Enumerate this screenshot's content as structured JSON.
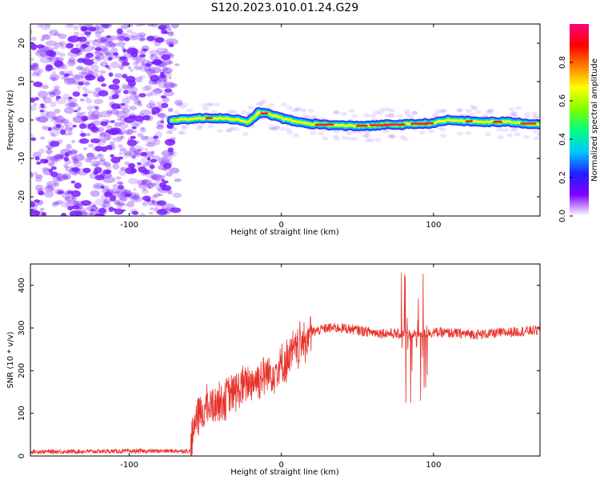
{
  "title": "S120.2023.010.01.24.G29",
  "colors": {
    "snr_line": "#e8302a",
    "scatter_fill": "#7a1fff",
    "colorbar": [
      "#ffffff",
      "#8000ff",
      "#2020ff",
      "#00c8ff",
      "#00ff80",
      "#80ff00",
      "#ffff00",
      "#ff8000",
      "#ff0000",
      "#ff0080"
    ]
  },
  "chart_data": [
    {
      "type": "heatmap",
      "xlabel": "Height of straight line (km)",
      "ylabel": "Frequency (Hz)",
      "xlim": [
        -165,
        170
      ],
      "ylim": [
        -25,
        25
      ],
      "x_ticks": [
        -100,
        0,
        100
      ],
      "y_ticks": [
        -20,
        -10,
        0,
        10,
        20
      ],
      "noise_region_x": [
        -165,
        -72
      ],
      "ridge": {
        "x": [
          -72,
          -60,
          -50,
          -40,
          -30,
          -22,
          -15,
          -8,
          0,
          10,
          20,
          40,
          60,
          70,
          80,
          90,
          100,
          110,
          130,
          150,
          170
        ],
        "frequency": [
          0,
          0.3,
          0.5,
          0.5,
          0.2,
          -0.8,
          2,
          1.5,
          0.5,
          -0.5,
          -1,
          -1.5,
          -1.5,
          -1.2,
          -1.2,
          -1,
          -0.8,
          0,
          -0.5,
          -0.5,
          -1.2
        ]
      },
      "colorbar": {
        "label": "Normalized spectral amplitude",
        "range": [
          0,
          1
        ],
        "ticks": [
          "0.0",
          "0.2",
          "0.4",
          "0.6",
          "0.8"
        ]
      }
    },
    {
      "type": "line",
      "xlabel": "Height of straight line (km)",
      "ylabel": "SNR (10 * v/v)",
      "xlim": [
        -165,
        170
      ],
      "ylim": [
        0,
        450
      ],
      "x_ticks": [
        -100,
        0,
        100
      ],
      "y_ticks": [
        0,
        100,
        200,
        300,
        400
      ],
      "series": [
        {
          "envelope_x": [
            -165,
            -60,
            -57,
            -50,
            -40,
            -30,
            -20,
            -10,
            0,
            10,
            20,
            30,
            40,
            60,
            80,
            90,
            100,
            130,
            170
          ],
          "envelope_y": [
            10,
            12,
            80,
            110,
            130,
            150,
            175,
            190,
            210,
            250,
            290,
            300,
            300,
            290,
            285,
            285,
            290,
            285,
            295
          ]
        }
      ]
    }
  ]
}
